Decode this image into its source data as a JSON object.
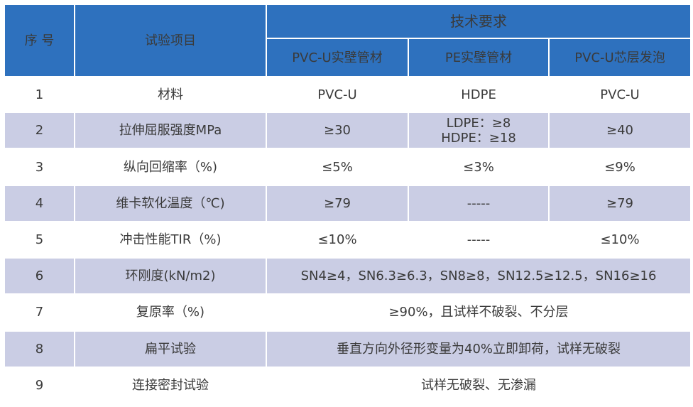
{
  "header": {
    "col_seq": "序 号",
    "col_item": "试验项目",
    "col_group": "技术要求",
    "sub_cols": [
      "PVC-U实壁管材",
      "PE实壁管材",
      "PVC-U芯层发泡"
    ]
  },
  "rows": [
    {
      "no": "1",
      "item": "材料",
      "c1": "PVC-U",
      "c2": "HDPE",
      "c3": "PVC-U"
    },
    {
      "no": "2",
      "item": "拉伸屈服强度MPa",
      "c1": "≥30",
      "c2_lines": [
        "LDPE：≥8",
        "HDPE：≥18"
      ],
      "c3": "≥40"
    },
    {
      "no": "3",
      "item": "纵向回缩率（%)",
      "c1": "≤5%",
      "c2": "≤3%",
      "c3": "≤9%"
    },
    {
      "no": "4",
      "item": "维卡软化温度（℃)",
      "c1": "≥79",
      "c2": "-----",
      "c3": "≥79"
    },
    {
      "no": "5",
      "item": "冲击性能TIR（%)",
      "c1": "≤10%",
      "c2": "-----",
      "c3": "≤10%"
    },
    {
      "no": "6",
      "item": "环刚度(kN/m2)",
      "merged": "SN4≥4，SN6.3≥6.3，SN8≥8，SN12.5≥12.5，SN16≥16"
    },
    {
      "no": "7",
      "item": "复原率（%)",
      "merged": "≥90%，且试样不破裂、不分层"
    },
    {
      "no": "8",
      "item": "扁平试验",
      "merged": "垂直方向外径形变量为40%立即卸荷，试样无破裂"
    },
    {
      "no": "9",
      "item": "连接密封试验",
      "merged": "试样无破裂、无渗漏"
    }
  ],
  "colors": {
    "header_bg": "#2e71be",
    "row_alt_bg": "#cacde4",
    "row_bg": "#ffffff",
    "text": "#3a3a3a"
  }
}
